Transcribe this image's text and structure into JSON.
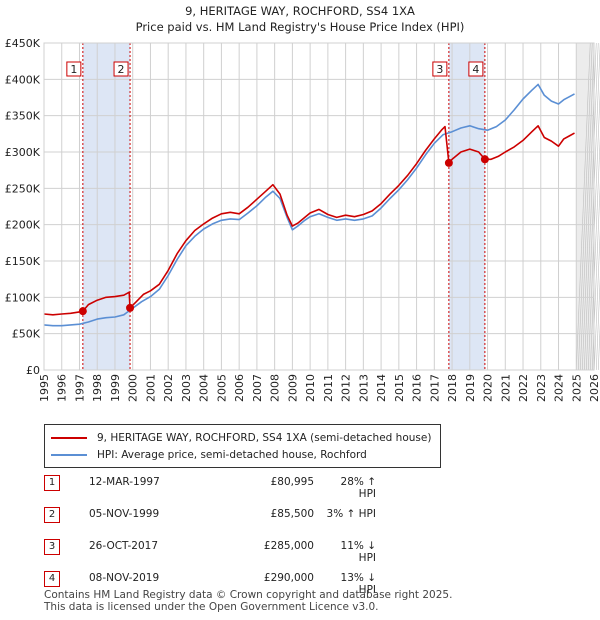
{
  "chart_data": {
    "type": "line",
    "title": "9, HERITAGE WAY, ROCHFORD, SS4 1XA",
    "subtitle": "Price paid vs. HM Land Registry's House Price Index (HPI)",
    "x_ticks": [
      "1995",
      "1996",
      "1997",
      "1998",
      "1999",
      "2000",
      "2001",
      "2002",
      "2003",
      "2004",
      "2005",
      "2006",
      "2007",
      "2008",
      "2009",
      "2010",
      "2011",
      "2012",
      "2013",
      "2014",
      "2015",
      "2016",
      "2017",
      "2018",
      "2019",
      "2020",
      "2021",
      "2022",
      "2023",
      "2024",
      "2025",
      "2026"
    ],
    "y_ticks": [
      "£0",
      "£50K",
      "£100K",
      "£150K",
      "£200K",
      "£250K",
      "£300K",
      "£350K",
      "£400K",
      "£450K"
    ],
    "xlim": [
      1995,
      2026
    ],
    "ylim": [
      0,
      450000
    ],
    "grid": true,
    "forecast_start": 2025.0,
    "series": [
      {
        "name": "9, HERITAGE WAY, ROCHFORD, SS4 1XA (semi-detached house)",
        "color": "#cc0000",
        "x": [
          1995.0,
          1995.5,
          1996.0,
          1996.5,
          1997.0,
          1997.19,
          1997.5,
          1998.0,
          1998.5,
          1999.0,
          1999.5,
          1999.8,
          1999.85,
          2000.2,
          2000.6,
          2001.0,
          2001.5,
          2002.0,
          2002.5,
          2003.0,
          2003.5,
          2004.0,
          2004.5,
          2005.0,
          2005.5,
          2006.0,
          2006.5,
          2007.0,
          2007.5,
          2007.9,
          2008.3,
          2008.7,
          2009.0,
          2009.3,
          2009.7,
          2010.0,
          2010.5,
          2011.0,
          2011.5,
          2012.0,
          2012.5,
          2013.0,
          2013.5,
          2014.0,
          2014.5,
          2015.0,
          2015.5,
          2016.0,
          2016.5,
          2017.0,
          2017.4,
          2017.6,
          2017.82,
          2018.0,
          2018.5,
          2019.0,
          2019.5,
          2019.85,
          2020.2,
          2020.6,
          2021.0,
          2021.5,
          2022.0,
          2022.5,
          2022.85,
          2023.2,
          2023.6,
          2024.0,
          2024.3,
          2024.6,
          2024.9
        ],
        "values": [
          77000,
          76000,
          77000,
          78000,
          80000,
          80995,
          90000,
          96000,
          100000,
          101000,
          103000,
          107000,
          85500,
          94000,
          104000,
          109000,
          118000,
          137000,
          160000,
          178000,
          192000,
          201000,
          209000,
          215000,
          217000,
          215000,
          224000,
          235000,
          246000,
          255000,
          242000,
          213000,
          198000,
          202000,
          210000,
          216000,
          221000,
          214000,
          210000,
          213000,
          211000,
          214000,
          219000,
          229000,
          242000,
          254000,
          268000,
          284000,
          302000,
          318000,
          330000,
          335000,
          285000,
          290000,
          300000,
          304000,
          300000,
          290000,
          290000,
          294000,
          300000,
          307000,
          316000,
          328000,
          336000,
          320000,
          315000,
          308000,
          318000,
          322000,
          326000
        ]
      },
      {
        "name": "HPI: Average price, semi-detached house, Rochford",
        "color": "#5b8fd4",
        "x": [
          1995.0,
          1995.5,
          1996.0,
          1996.5,
          1997.0,
          1997.5,
          1998.0,
          1998.5,
          1999.0,
          1999.5,
          2000.0,
          2000.5,
          2001.0,
          2001.5,
          2002.0,
          2002.5,
          2003.0,
          2003.5,
          2004.0,
          2004.5,
          2005.0,
          2005.5,
          2006.0,
          2006.5,
          2007.0,
          2007.5,
          2007.9,
          2008.3,
          2008.7,
          2009.0,
          2009.3,
          2009.7,
          2010.0,
          2010.5,
          2011.0,
          2011.5,
          2012.0,
          2012.5,
          2013.0,
          2013.5,
          2014.0,
          2014.5,
          2015.0,
          2015.5,
          2016.0,
          2016.5,
          2017.0,
          2017.5,
          2018.0,
          2018.5,
          2019.0,
          2019.5,
          2020.0,
          2020.5,
          2021.0,
          2021.5,
          2022.0,
          2022.5,
          2022.85,
          2023.2,
          2023.6,
          2024.0,
          2024.3,
          2024.6,
          2024.9
        ],
        "values": [
          62000,
          61000,
          61000,
          62000,
          63000,
          66000,
          70000,
          72000,
          73000,
          76000,
          85000,
          94000,
          101000,
          111000,
          130000,
          152000,
          171000,
          184000,
          194000,
          201000,
          206000,
          208000,
          207000,
          216000,
          226000,
          238000,
          246000,
          236000,
          210000,
          193000,
          198000,
          206000,
          211000,
          215000,
          210000,
          206000,
          208000,
          206000,
          208000,
          212000,
          223000,
          236000,
          248000,
          262000,
          278000,
          296000,
          312000,
          324000,
          328000,
          333000,
          336000,
          332000,
          330000,
          335000,
          344000,
          358000,
          373000,
          385000,
          393000,
          378000,
          370000,
          366000,
          372000,
          376000,
          380000
        ]
      }
    ],
    "transactions": [
      {
        "label": "1",
        "date": "12-MAR-1997",
        "price": "£80,995",
        "hpi_diff": "28% ↑ HPI",
        "x": 1997.19,
        "value": 80995
      },
      {
        "label": "2",
        "date": "05-NOV-1999",
        "price": "£85,500",
        "hpi_diff": "3% ↑ HPI",
        "x": 1999.85,
        "value": 85500
      },
      {
        "label": "3",
        "date": "26-OCT-2017",
        "price": "£285,000",
        "hpi_diff": "11% ↓ HPI",
        "x": 2017.82,
        "value": 285000
      },
      {
        "label": "4",
        "date": "08-NOV-2019",
        "price": "£290,000",
        "hpi_diff": "13% ↓ HPI",
        "x": 2019.85,
        "value": 290000
      }
    ],
    "shaded_periods": [
      [
        1997.19,
        1999.85
      ],
      [
        2017.82,
        2019.85
      ]
    ]
  },
  "legend": {
    "property_label": "9, HERITAGE WAY, ROCHFORD, SS4 1XA (semi-detached house)",
    "hpi_label": "HPI: Average price, semi-detached house, Rochford"
  },
  "footer": {
    "line1": "Contains HM Land Registry data © Crown copyright and database right 2025.",
    "line2": "This data is licensed under the Open Government Licence v3.0."
  },
  "colors": {
    "property": "#cc0000",
    "hpi": "#5b8fd4",
    "shade": "#dde6f5",
    "grid": "#d0d0d0"
  }
}
